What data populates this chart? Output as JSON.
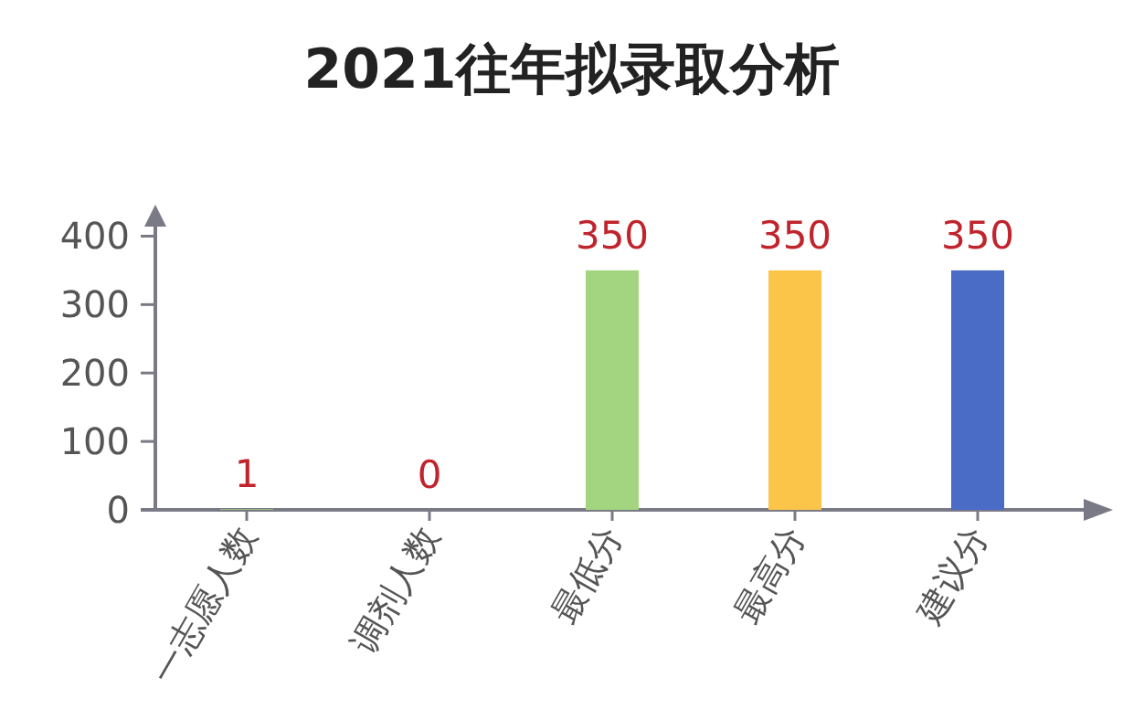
{
  "chart_data": {
    "type": "bar",
    "title": "2021往年拟录取分析",
    "categories": [
      "一志愿人数",
      "调剂人数",
      "最低分",
      "最高分",
      "建议分"
    ],
    "values": [
      1,
      0,
      350,
      350,
      350
    ],
    "colors": [
      "#a3d47f",
      "#a3d47f",
      "#a3d47f",
      "#fbc54a",
      "#4a6cc7"
    ],
    "ylim": [
      0,
      430
    ],
    "yticks": [
      0,
      100,
      200,
      300,
      400
    ],
    "data_labels": true,
    "grid": false
  }
}
